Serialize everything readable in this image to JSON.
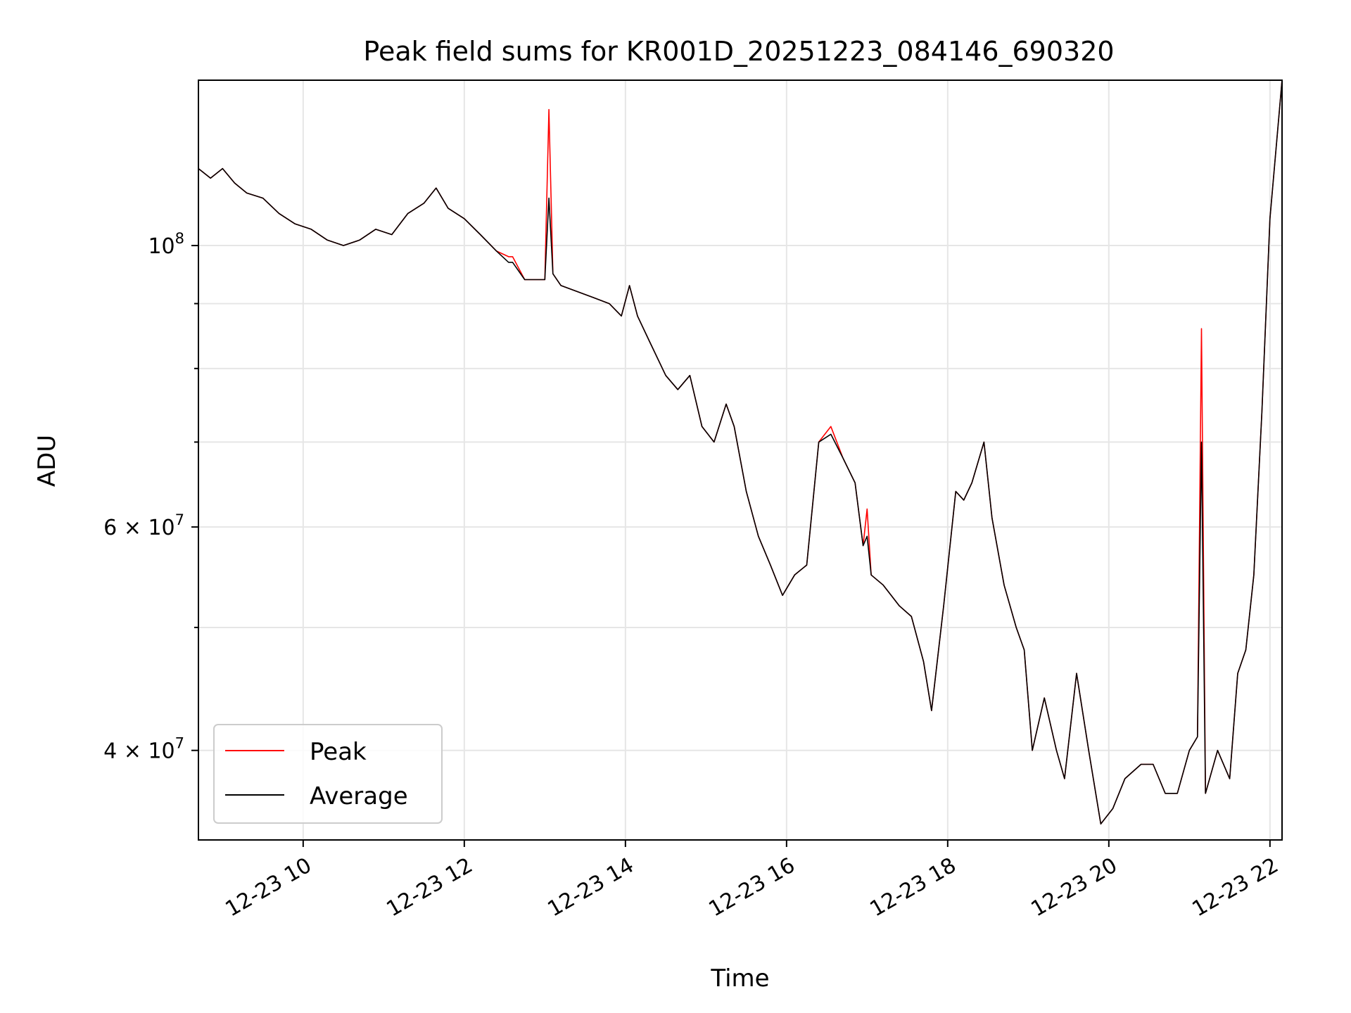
{
  "chart_data": {
    "type": "line",
    "title": "Peak field sums for KR001D_20251223_084146_690320",
    "xlabel": "Time",
    "ylabel": "ADU",
    "y_scale": "log",
    "ylim": [
      34000000,
      135000000
    ],
    "xlim_hours": [
      8.7,
      22.15
    ],
    "grid": true,
    "legend_position": "lower-left",
    "x_ticks": [
      {
        "value": 10,
        "label": "12-23 10"
      },
      {
        "value": 12,
        "label": "12-23 12"
      },
      {
        "value": 14,
        "label": "12-23 14"
      },
      {
        "value": 16,
        "label": "12-23 16"
      },
      {
        "value": 18,
        "label": "12-23 18"
      },
      {
        "value": 20,
        "label": "12-23 20"
      },
      {
        "value": 22,
        "label": "12-23 22"
      }
    ],
    "y_major_ticks": [
      {
        "value": 40000000,
        "mantissa": "4",
        "exponent": "7"
      },
      {
        "value": 60000000,
        "mantissa": "6",
        "exponent": "7"
      },
      {
        "value": 100000000,
        "mantissa": "",
        "exponent": "8"
      }
    ],
    "y_minor_ticks": [
      50000000,
      70000000,
      80000000,
      90000000
    ],
    "series": [
      {
        "name": "Peak",
        "color": "#ff0000",
        "time_hours": [
          8.7,
          8.85,
          9.0,
          9.15,
          9.3,
          9.5,
          9.7,
          9.9,
          10.1,
          10.3,
          10.5,
          10.7,
          10.9,
          11.1,
          11.3,
          11.5,
          11.65,
          11.8,
          12.0,
          12.2,
          12.4,
          12.55,
          12.6,
          12.75,
          12.9,
          13.0,
          13.05,
          13.1,
          13.2,
          13.4,
          13.6,
          13.8,
          13.95,
          14.05,
          14.15,
          14.3,
          14.5,
          14.65,
          14.8,
          14.95,
          15.1,
          15.25,
          15.35,
          15.5,
          15.65,
          15.8,
          15.95,
          16.1,
          16.25,
          16.4,
          16.55,
          16.7,
          16.85,
          16.95,
          17.0,
          17.05,
          17.2,
          17.4,
          17.55,
          17.7,
          17.8,
          17.95,
          18.1,
          18.2,
          18.3,
          18.45,
          18.55,
          18.7,
          18.85,
          18.95,
          19.05,
          19.2,
          19.35,
          19.45,
          19.6,
          19.75,
          19.9,
          20.05,
          20.2,
          20.4,
          20.55,
          20.7,
          20.85,
          21.0,
          21.1,
          21.15,
          21.2,
          21.35,
          21.5,
          21.6,
          21.7,
          21.8,
          21.9,
          22.0,
          22.15
        ],
        "values_adu": [
          115000000,
          113000000,
          115000000,
          112000000,
          110000000,
          109000000,
          106000000,
          104000000,
          103000000,
          101000000,
          100000000,
          101000000,
          103000000,
          102000000,
          106000000,
          108000000,
          111000000,
          107000000,
          105000000,
          102000000,
          99000000,
          98000000,
          98000000,
          94000000,
          94000000,
          94000000,
          128000000,
          95000000,
          93000000,
          92000000,
          91000000,
          90000000,
          88000000,
          93000000,
          88000000,
          84000000,
          79000000,
          77000000,
          79000000,
          72000000,
          70000000,
          75000000,
          72000000,
          64000000,
          59000000,
          56000000,
          53000000,
          55000000,
          56000000,
          70000000,
          72000000,
          68000000,
          65000000,
          58000000,
          62000000,
          55000000,
          54000000,
          52000000,
          51000000,
          47000000,
          43000000,
          52000000,
          64000000,
          63000000,
          65000000,
          70000000,
          61000000,
          54000000,
          50000000,
          48000000,
          40000000,
          44000000,
          40000000,
          38000000,
          46000000,
          40000000,
          35000000,
          36000000,
          38000000,
          39000000,
          39000000,
          37000000,
          37000000,
          40000000,
          41000000,
          86000000,
          37000000,
          40000000,
          38000000,
          46000000,
          48000000,
          55000000,
          74000000,
          105000000,
          135000000
        ]
      },
      {
        "name": "Average",
        "color": "#000000",
        "time_hours": [
          8.7,
          8.85,
          9.0,
          9.15,
          9.3,
          9.5,
          9.7,
          9.9,
          10.1,
          10.3,
          10.5,
          10.7,
          10.9,
          11.1,
          11.3,
          11.5,
          11.65,
          11.8,
          12.0,
          12.2,
          12.4,
          12.55,
          12.6,
          12.75,
          12.9,
          13.0,
          13.05,
          13.1,
          13.2,
          13.4,
          13.6,
          13.8,
          13.95,
          14.05,
          14.15,
          14.3,
          14.5,
          14.65,
          14.8,
          14.95,
          15.1,
          15.25,
          15.35,
          15.5,
          15.65,
          15.8,
          15.95,
          16.1,
          16.25,
          16.4,
          16.55,
          16.7,
          16.85,
          16.95,
          17.0,
          17.05,
          17.2,
          17.4,
          17.55,
          17.7,
          17.8,
          17.95,
          18.1,
          18.2,
          18.3,
          18.45,
          18.55,
          18.7,
          18.85,
          18.95,
          19.05,
          19.2,
          19.35,
          19.45,
          19.6,
          19.75,
          19.9,
          20.05,
          20.2,
          20.4,
          20.55,
          20.7,
          20.85,
          21.0,
          21.1,
          21.15,
          21.2,
          21.35,
          21.5,
          21.6,
          21.7,
          21.8,
          21.9,
          22.0,
          22.15
        ],
        "values_adu": [
          115000000,
          113000000,
          115000000,
          112000000,
          110000000,
          109000000,
          106000000,
          104000000,
          103000000,
          101000000,
          100000000,
          101000000,
          103000000,
          102000000,
          106000000,
          108000000,
          111000000,
          107000000,
          105000000,
          102000000,
          99000000,
          97000000,
          97000000,
          94000000,
          94000000,
          94000000,
          109000000,
          95000000,
          93000000,
          92000000,
          91000000,
          90000000,
          88000000,
          93000000,
          88000000,
          84000000,
          79000000,
          77000000,
          79000000,
          72000000,
          70000000,
          75000000,
          72000000,
          64000000,
          59000000,
          56000000,
          53000000,
          55000000,
          56000000,
          70000000,
          71000000,
          68000000,
          65000000,
          58000000,
          59000000,
          55000000,
          54000000,
          52000000,
          51000000,
          47000000,
          43000000,
          52000000,
          64000000,
          63000000,
          65000000,
          70000000,
          61000000,
          54000000,
          50000000,
          48000000,
          40000000,
          44000000,
          40000000,
          38000000,
          46000000,
          40000000,
          35000000,
          36000000,
          38000000,
          39000000,
          39000000,
          37000000,
          37000000,
          40000000,
          41000000,
          70000000,
          37000000,
          40000000,
          38000000,
          46000000,
          48000000,
          55000000,
          74000000,
          105000000,
          135000000
        ]
      }
    ]
  }
}
